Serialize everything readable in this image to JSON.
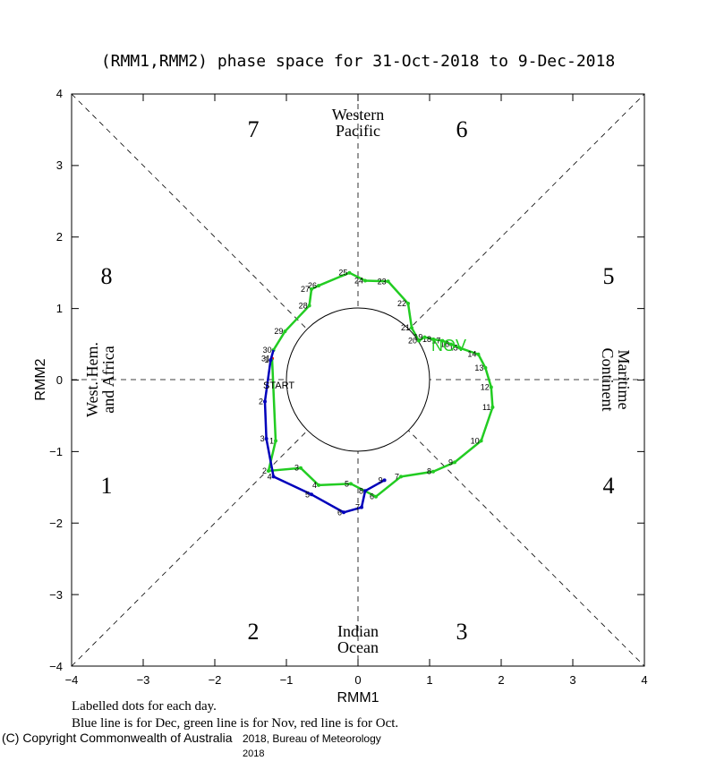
{
  "chart_data": {
    "type": "line",
    "title": "(RMM1,RMM2) phase space for 31-Oct-2018 to  9-Dec-2018",
    "xlabel": "RMM1",
    "ylabel": "RMM2",
    "xlim": [
      -4,
      4
    ],
    "ylim": [
      -4,
      4
    ],
    "x_tick_labels": [
      "−4",
      "−3",
      "−2",
      "−1",
      "0",
      "1",
      "2",
      "3",
      "4"
    ],
    "y_tick_labels": [
      "−4",
      "−3",
      "−2",
      "−1",
      "0",
      "1",
      "2",
      "3",
      "4"
    ],
    "phase_labels": [
      "1",
      "2",
      "3",
      "4",
      "5",
      "6",
      "7",
      "8"
    ],
    "region_labels": {
      "top": [
        "Western",
        "Pacific"
      ],
      "bottom": [
        "Indian",
        "Ocean"
      ],
      "left": [
        "West. Hem.",
        "and Africa"
      ],
      "right": [
        "Maritime",
        "Continent"
      ]
    },
    "start_label": "START",
    "month_label": "NOV",
    "series": [
      {
        "name": "Oct",
        "color": "#ff0000",
        "points": [
          {
            "x": -1.2,
            "y": 0.3,
            "label": "31"
          }
        ]
      },
      {
        "name": "Nov",
        "color": "#22cc22",
        "points": [
          {
            "x": -1.2,
            "y": 0.3,
            "label": ""
          },
          {
            "x": -1.15,
            "y": -0.85,
            "label": "1"
          },
          {
            "x": -1.25,
            "y": -1.27,
            "label": "2"
          },
          {
            "x": -0.8,
            "y": -1.23,
            "label": "3"
          },
          {
            "x": -0.55,
            "y": -1.47,
            "label": "4"
          },
          {
            "x": -0.1,
            "y": -1.45,
            "label": "5"
          },
          {
            "x": 0.25,
            "y": -1.63,
            "label": "6"
          },
          {
            "x": 0.6,
            "y": -1.35,
            "label": "7"
          },
          {
            "x": 1.05,
            "y": -1.28,
            "label": "8"
          },
          {
            "x": 1.35,
            "y": -1.15,
            "label": "9"
          },
          {
            "x": 1.72,
            "y": -0.85,
            "label": "10"
          },
          {
            "x": 1.88,
            "y": -0.38,
            "label": "11"
          },
          {
            "x": 1.86,
            "y": -0.1,
            "label": "12"
          },
          {
            "x": 1.78,
            "y": 0.17,
            "label": "13"
          },
          {
            "x": 1.68,
            "y": 0.36,
            "label": "14"
          },
          {
            "x": 1.42,
            "y": 0.45,
            "label": "15"
          },
          {
            "x": 1.3,
            "y": 0.5,
            "label": "16"
          },
          {
            "x": 1.18,
            "y": 0.55,
            "label": "17"
          },
          {
            "x": 1.05,
            "y": 0.57,
            "label": "18"
          },
          {
            "x": 0.93,
            "y": 0.6,
            "label": "19"
          },
          {
            "x": 0.85,
            "y": 0.55,
            "label": "20"
          },
          {
            "x": 0.75,
            "y": 0.73,
            "label": "21"
          },
          {
            "x": 0.7,
            "y": 1.07,
            "label": "22"
          },
          {
            "x": 0.42,
            "y": 1.38,
            "label": "23"
          },
          {
            "x": 0.1,
            "y": 1.39,
            "label": "24"
          },
          {
            "x": -0.12,
            "y": 1.5,
            "label": "25"
          },
          {
            "x": -0.55,
            "y": 1.32,
            "label": "26"
          },
          {
            "x": -0.65,
            "y": 1.27,
            "label": "27"
          },
          {
            "x": -0.68,
            "y": 1.04,
            "label": "28"
          },
          {
            "x": -1.02,
            "y": 0.68,
            "label": "29"
          },
          {
            "x": -1.18,
            "y": 0.42,
            "label": "30"
          }
        ]
      },
      {
        "name": "Dec",
        "color": "#0000bb",
        "points": [
          {
            "x": -1.18,
            "y": 0.42,
            "label": ""
          },
          {
            "x": -1.22,
            "y": 0.28,
            "label": "1"
          },
          {
            "x": -1.3,
            "y": -0.3,
            "label": "2"
          },
          {
            "x": -1.28,
            "y": -0.82,
            "label": "3"
          },
          {
            "x": -1.18,
            "y": -1.35,
            "label": "4"
          },
          {
            "x": -0.65,
            "y": -1.6,
            "label": "5"
          },
          {
            "x": -0.2,
            "y": -1.85,
            "label": "6"
          },
          {
            "x": 0.05,
            "y": -1.78,
            "label": "7"
          },
          {
            "x": 0.1,
            "y": -1.55,
            "label": "8"
          },
          {
            "x": 0.37,
            "y": -1.4,
            "label": "9"
          }
        ]
      }
    ],
    "notes": [
      "Labelled dots for each day.",
      "Blue line is for Dec, green line is for Nov, red line is for Oct."
    ],
    "copyright": {
      "line1": "(C) Copyright Commonwealth of Australia",
      "line1b": "2018, Bureau of Meteorology",
      "year": "2018"
    }
  }
}
